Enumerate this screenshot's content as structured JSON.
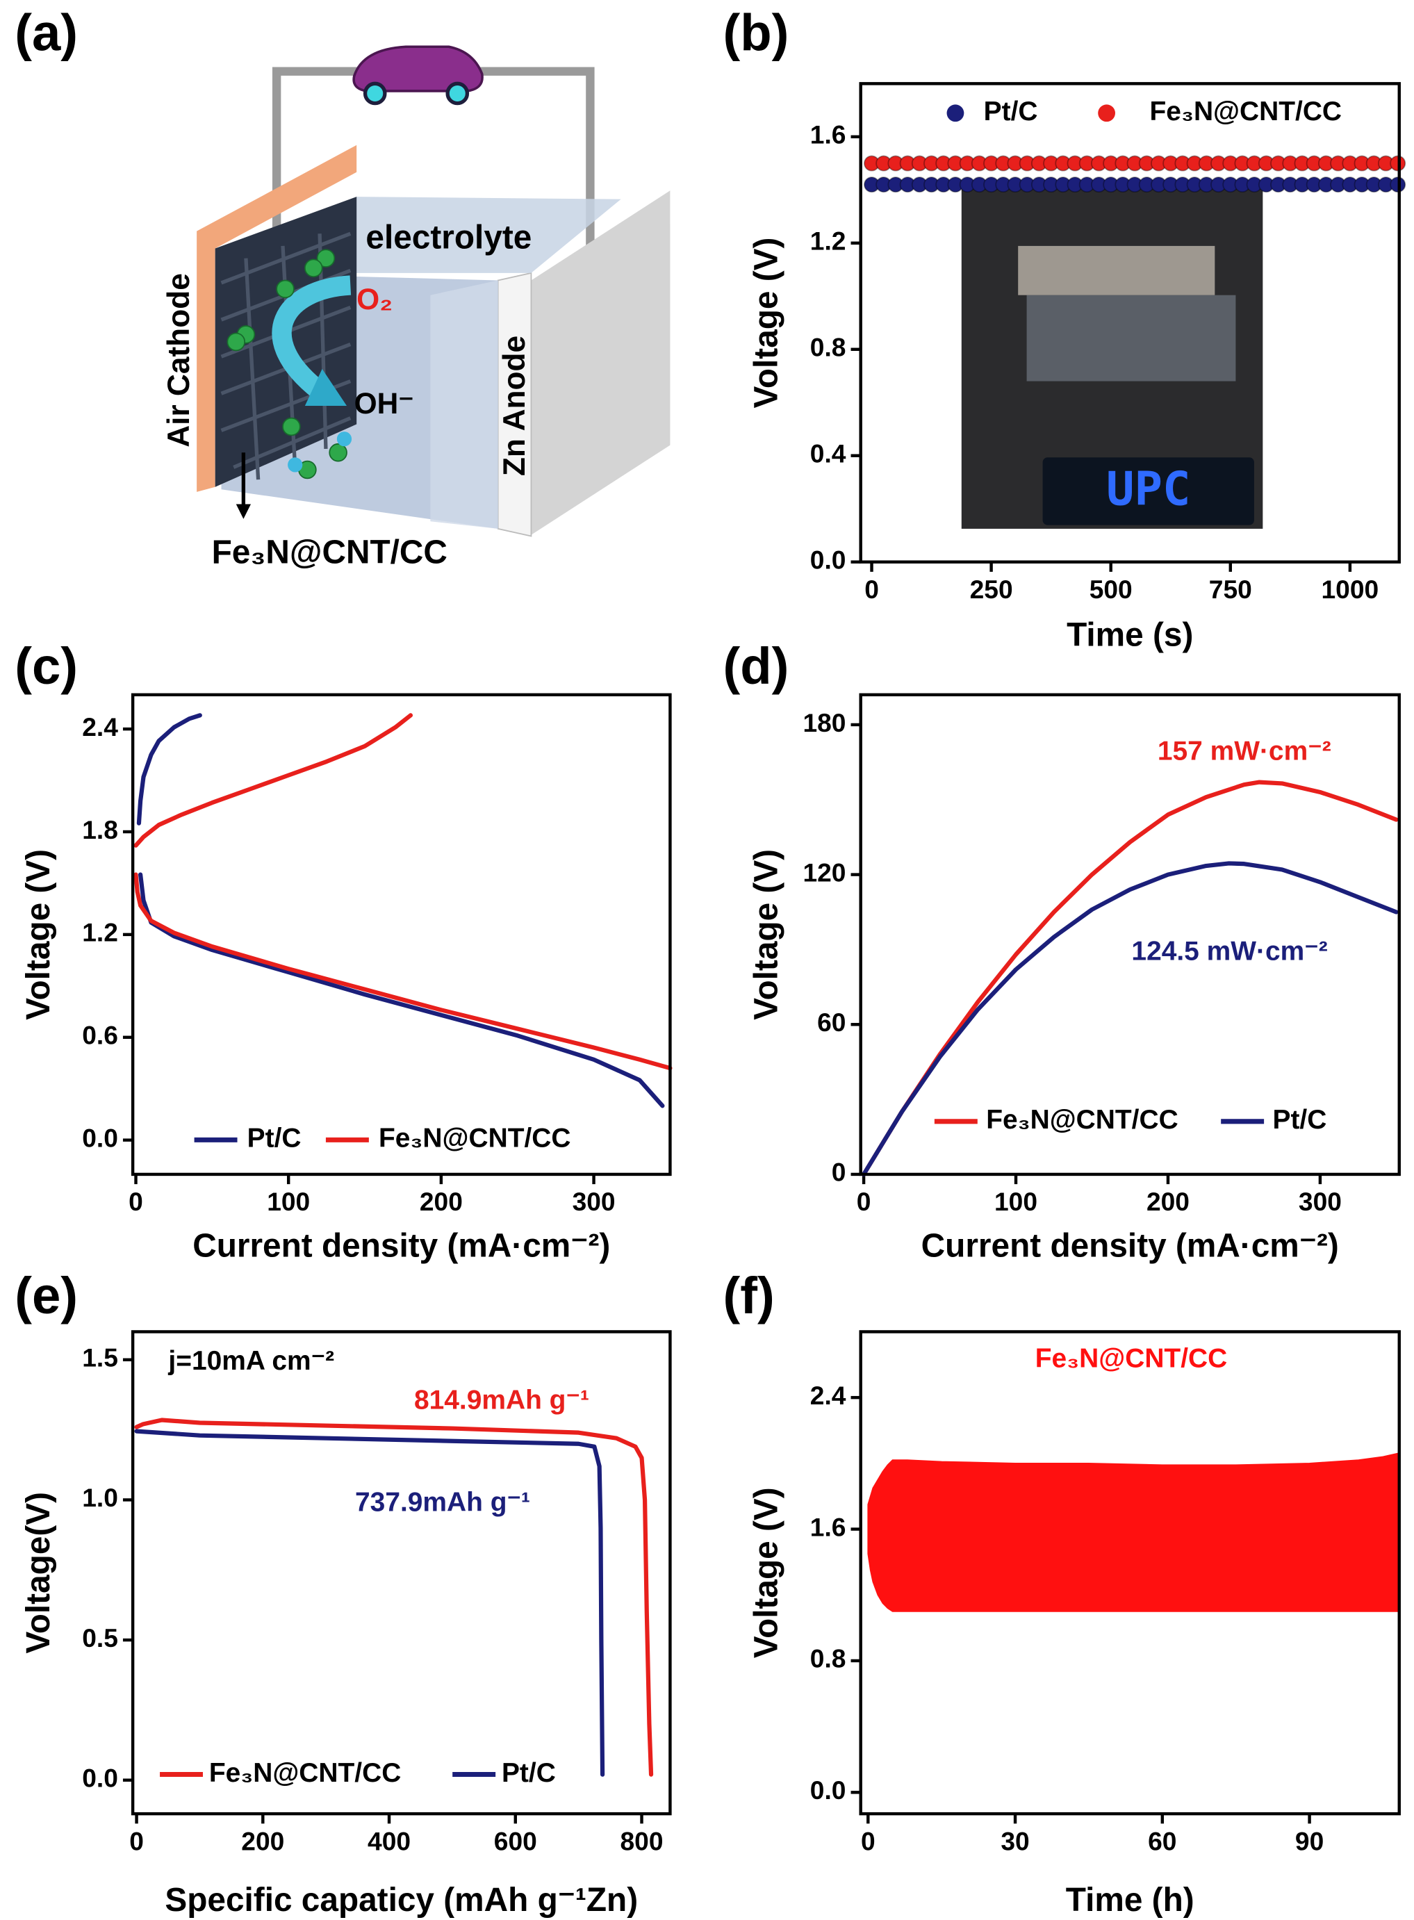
{
  "diagram": {
    "panel_label": "(a)",
    "electrolyte": "electrolyte",
    "oxygen": "O₂",
    "hydroxide": "OH⁻",
    "cathode": "Air Cathode",
    "anode": "Zn Anode",
    "material": "Fe₃N@CNT/CC"
  },
  "photo": {
    "display_text": "UPC"
  },
  "chart_data": [
    {
      "type": "scatter",
      "panel_label": "(b)",
      "xlabel": "Time (s)",
      "ylabel": "Voltage (V)",
      "x": [
        0,
        25,
        50,
        75,
        100,
        125,
        150,
        175,
        200,
        225,
        250,
        275,
        300,
        325,
        350,
        375,
        400,
        425,
        450,
        475,
        500,
        525,
        550,
        575,
        600,
        625,
        650,
        675,
        700,
        725,
        750,
        775,
        800,
        825,
        850,
        875,
        900,
        925,
        950,
        975,
        1000,
        1025,
        1050,
        1075,
        1100
      ],
      "series": [
        {
          "name": "Pt/C",
          "color": "#1b1f7a",
          "values": [
            1.42,
            1.42,
            1.42,
            1.42,
            1.42,
            1.42,
            1.42,
            1.42,
            1.42,
            1.42,
            1.42,
            1.42,
            1.42,
            1.42,
            1.42,
            1.42,
            1.42,
            1.42,
            1.42,
            1.42,
            1.42,
            1.42,
            1.42,
            1.42,
            1.42,
            1.42,
            1.42,
            1.42,
            1.42,
            1.42,
            1.42,
            1.42,
            1.42,
            1.42,
            1.42,
            1.42,
            1.42,
            1.42,
            1.42,
            1.42,
            1.42,
            1.42,
            1.42,
            1.42,
            1.42
          ]
        },
        {
          "name": "Fe₃N@CNT/CC",
          "color": "#e8201c",
          "values": [
            1.5,
            1.5,
            1.5,
            1.5,
            1.5,
            1.5,
            1.5,
            1.5,
            1.5,
            1.5,
            1.5,
            1.5,
            1.5,
            1.5,
            1.5,
            1.5,
            1.5,
            1.5,
            1.5,
            1.5,
            1.5,
            1.5,
            1.5,
            1.5,
            1.5,
            1.5,
            1.5,
            1.5,
            1.5,
            1.5,
            1.5,
            1.5,
            1.5,
            1.5,
            1.5,
            1.5,
            1.5,
            1.5,
            1.5,
            1.5,
            1.5,
            1.5,
            1.5,
            1.5,
            1.5
          ]
        }
      ],
      "xlim": [
        -23,
        1103
      ],
      "xticks": [
        0,
        250,
        500,
        750,
        1000
      ],
      "ylim": [
        0,
        1.8
      ],
      "yticks": [
        {
          "value": 0,
          "label": "0.0"
        },
        0.4,
        0.8,
        1.2,
        1.6
      ],
      "legend": "top"
    },
    {
      "type": "line",
      "panel_label": "(c)",
      "xlabel": "Current density (mA·cm⁻²)",
      "ylabel": "Voltage (V)",
      "series": [
        {
          "name": "Pt/C",
          "color": "#1b1f7a",
          "x": [
            3,
            5,
            10,
            25,
            50,
            100,
            150,
            200,
            250,
            300,
            330,
            345,
            null,
            2,
            3,
            5,
            10,
            15,
            25,
            35,
            42
          ],
          "values": [
            1.55,
            1.4,
            1.27,
            1.19,
            1.11,
            0.98,
            0.85,
            0.73,
            0.61,
            0.47,
            0.35,
            0.2,
            null,
            1.85,
            1.98,
            2.12,
            2.25,
            2.33,
            2.41,
            2.46,
            2.48
          ]
        },
        {
          "name": "Fe₃N@CNT/CC",
          "color": "#e8201c",
          "x": [
            0,
            1,
            3,
            10,
            25,
            50,
            100,
            150,
            200,
            250,
            300,
            330,
            350,
            null,
            0,
            5,
            15,
            30,
            50,
            75,
            100,
            125,
            150,
            170,
            180
          ],
          "values": [
            1.55,
            1.45,
            1.37,
            1.28,
            1.21,
            1.13,
            1.0,
            0.88,
            0.76,
            0.65,
            0.54,
            0.47,
            0.42,
            null,
            1.72,
            1.77,
            1.84,
            1.9,
            1.97,
            2.05,
            2.13,
            2.21,
            2.3,
            2.41,
            2.48
          ]
        }
      ],
      "xlim": [
        -2,
        350
      ],
      "xticks": [
        0,
        100,
        200,
        300
      ],
      "ylim": [
        -0.2,
        2.6
      ],
      "yticks": [
        {
          "value": 0,
          "label": "0.0"
        },
        0.6,
        1.2,
        1.8,
        2.4
      ],
      "legend": "bottom"
    },
    {
      "type": "line",
      "panel_label": "(d)",
      "xlabel": "Current density (mA·cm⁻²)",
      "ylabel": "Voltage (V)",
      "series": [
        {
          "name": "Fe₃N@CNT/CC",
          "color": "#e8201c",
          "x": [
            0,
            25,
            50,
            75,
            100,
            125,
            150,
            175,
            200,
            225,
            250,
            260,
            275,
            300,
            325,
            350
          ],
          "values": [
            0,
            25,
            48,
            69,
            88,
            105,
            120,
            133,
            144,
            151,
            156,
            157,
            156.5,
            153,
            148,
            142
          ]
        },
        {
          "name": "Pt/C",
          "color": "#1b1f7a",
          "x": [
            0,
            25,
            50,
            75,
            100,
            125,
            150,
            175,
            200,
            225,
            240,
            250,
            275,
            300,
            325,
            350
          ],
          "values": [
            0,
            25,
            47,
            66,
            82,
            95,
            106,
            114,
            120,
            123.5,
            124.5,
            124.3,
            122,
            117,
            111,
            105
          ]
        }
      ],
      "annotations": [
        {
          "text": "157 mW·cm⁻²",
          "color": "#e8201c"
        },
        {
          "text": "124.5 mW·cm⁻²",
          "color": "#1b1f7a"
        }
      ],
      "xlim": [
        -2,
        352
      ],
      "xticks": [
        0,
        100,
        200,
        300
      ],
      "ylim": [
        0,
        192
      ],
      "yticks": [
        0,
        60,
        120,
        180
      ],
      "legend": "bottom"
    },
    {
      "type": "line",
      "panel_label": "(e)",
      "xlabel": "Specific capaticy (mAh g⁻¹Zn)",
      "ylabel": "Voltage(V)",
      "series": [
        {
          "name": "Fe₃N@CNT/CC",
          "color": "#e8201c",
          "x": [
            0,
            10,
            40,
            100,
            300,
            500,
            700,
            760,
            790,
            800,
            805,
            808,
            812,
            814.9
          ],
          "values": [
            1.26,
            1.27,
            1.285,
            1.275,
            1.265,
            1.255,
            1.24,
            1.22,
            1.19,
            1.15,
            1.0,
            0.6,
            0.2,
            0.02
          ]
        },
        {
          "name": "Pt/C",
          "color": "#1b1f7a",
          "x": [
            0,
            100,
            300,
            500,
            700,
            725,
            733,
            735,
            736,
            737.9
          ],
          "values": [
            1.245,
            1.23,
            1.22,
            1.21,
            1.2,
            1.19,
            1.12,
            0.9,
            0.5,
            0.02
          ]
        }
      ],
      "annotations": [
        {
          "text": "j=10mA cm⁻²",
          "color": "#000000"
        },
        {
          "text": "814.9mAh g⁻¹",
          "color": "#e8201c"
        },
        {
          "text": "737.9mAh g⁻¹",
          "color": "#1b1f7a"
        }
      ],
      "xlim": [
        -6,
        845
      ],
      "xticks": [
        0,
        200,
        400,
        600,
        800
      ],
      "ylim": [
        -0.12,
        1.6
      ],
      "yticks": [
        {
          "value": 0,
          "label": "0.0"
        },
        0.5,
        {
          "value": 1,
          "label": "1.0"
        },
        1.5
      ],
      "legend": "bottom"
    },
    {
      "type": "band",
      "panel_label": "(f)",
      "xlabel": "Time (h)",
      "ylabel": "Voltage (V)",
      "x": [
        0,
        0.5,
        1,
        2,
        3,
        4,
        5,
        8,
        15,
        30,
        45,
        60,
        75,
        90,
        100,
        105,
        108
      ],
      "series": [
        {
          "name": "Fe₃N@CNT/CC",
          "color": "#ff1010",
          "upper": [
            1.75,
            1.8,
            1.85,
            1.9,
            1.95,
            1.99,
            2.02,
            2.02,
            2.01,
            2.0,
            2.0,
            1.99,
            1.99,
            2.0,
            2.02,
            2.04,
            2.06
          ],
          "lower": [
            1.45,
            1.35,
            1.28,
            1.2,
            1.15,
            1.12,
            1.1,
            1.1,
            1.1,
            1.1,
            1.1,
            1.1,
            1.1,
            1.1,
            1.1,
            1.1,
            1.1
          ]
        }
      ],
      "xlim": [
        -1.5,
        108.3
      ],
      "xticks": [
        0,
        30,
        60,
        90
      ],
      "ylim": [
        -0.13,
        2.8
      ],
      "yticks": [
        {
          "value": 0,
          "label": "0.0"
        },
        0.8,
        1.6,
        2.4
      ],
      "legend": "top"
    }
  ]
}
